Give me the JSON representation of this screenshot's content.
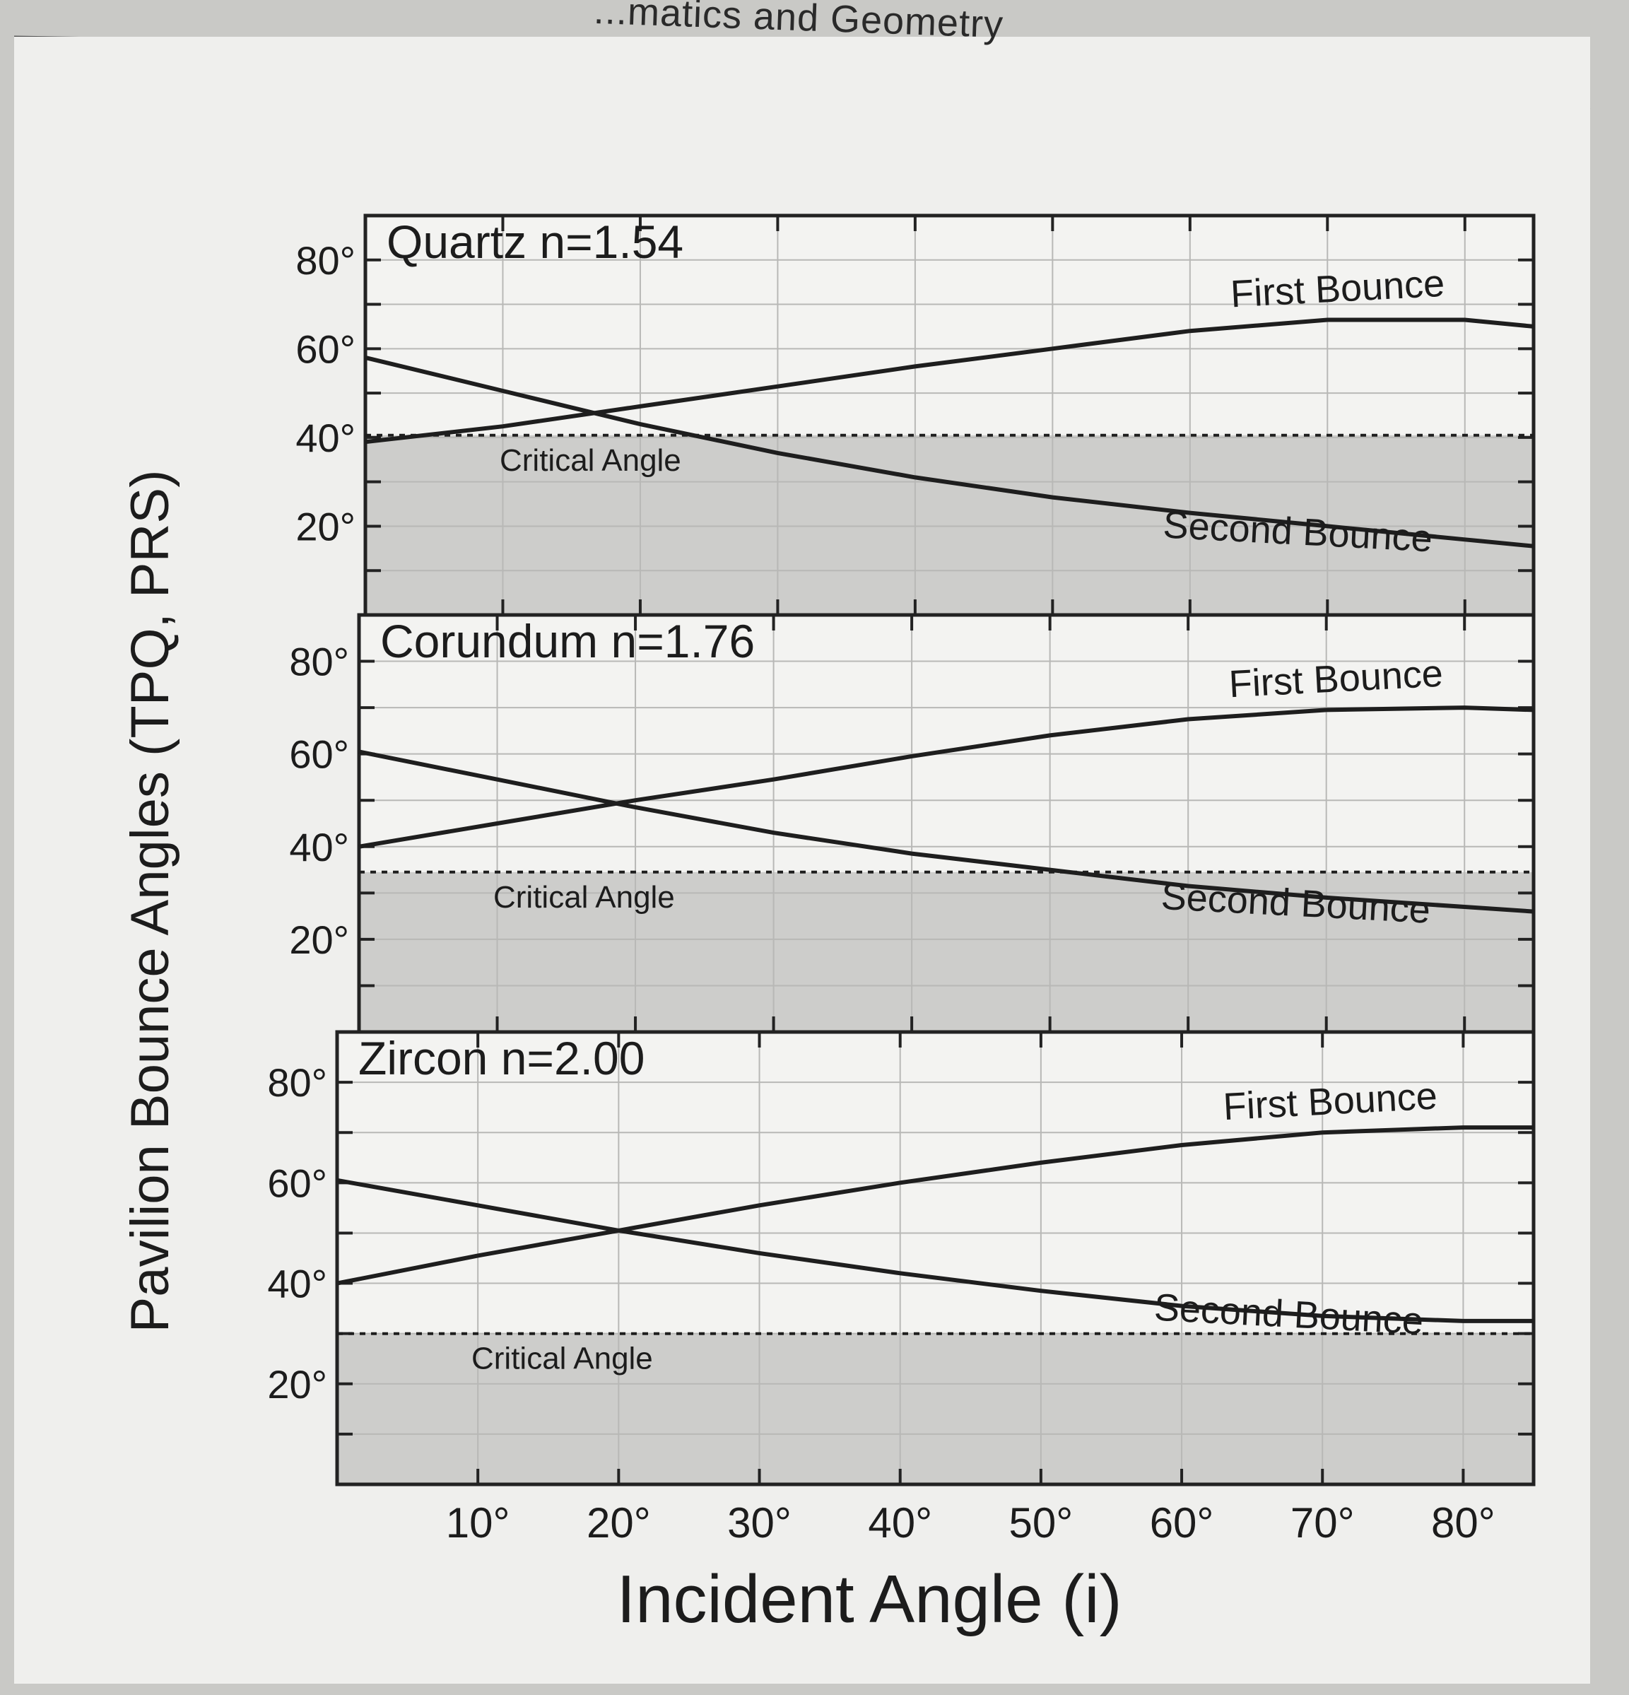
{
  "page": {
    "running_head": "...matics and Geometry",
    "y_axis_title": "Pavilion Bounce Angles (TPQ, PRS)",
    "x_axis_title": "Incident Angle (i)"
  },
  "chart_data": [
    {
      "type": "line",
      "title": "Quartz  n=1.54",
      "xlim": [
        0,
        85
      ],
      "ylim": [
        0,
        90
      ],
      "x_ticks": [
        "10°",
        "20°",
        "30°",
        "40°",
        "50°",
        "60°",
        "70°",
        "80°"
      ],
      "y_ticks": [
        "20°",
        "40°",
        "60°",
        "80°"
      ],
      "x": [
        0,
        10,
        20,
        30,
        40,
        50,
        60,
        70,
        80,
        85
      ],
      "series": [
        {
          "name": "First Bounce",
          "values": [
            39,
            42.5,
            47,
            51.5,
            56,
            60,
            64,
            66.5,
            66.5,
            65
          ],
          "style": "solid"
        },
        {
          "name": "Second Bounce",
          "values": [
            58,
            50.5,
            43,
            36.5,
            31,
            26.5,
            23,
            20,
            17,
            15.5
          ],
          "style": "solid"
        },
        {
          "name": "Critical Angle",
          "values": [
            40.5,
            40.5,
            40.5,
            40.5,
            40.5,
            40.5,
            40.5,
            40.5,
            40.5,
            40.5
          ],
          "style": "dashed"
        }
      ],
      "labels": {
        "first": "First Bounce",
        "second": "Second Bounce",
        "critical": "Critical Angle"
      }
    },
    {
      "type": "line",
      "title": "Corundum  n=1.76",
      "xlim": [
        0,
        85
      ],
      "ylim": [
        0,
        90
      ],
      "x_ticks": [
        "10°",
        "20°",
        "30°",
        "40°",
        "50°",
        "60°",
        "70°",
        "80°"
      ],
      "y_ticks": [
        "20°",
        "40°",
        "60°",
        "80°"
      ],
      "x": [
        0,
        10,
        20,
        30,
        40,
        50,
        60,
        70,
        80,
        85
      ],
      "series": [
        {
          "name": "First Bounce",
          "values": [
            40,
            45,
            50,
            54.5,
            59.5,
            64,
            67.5,
            69.5,
            70,
            69.5
          ],
          "style": "solid"
        },
        {
          "name": "Second Bounce",
          "values": [
            60.5,
            54.5,
            48.5,
            43,
            38.5,
            35,
            31.5,
            29,
            27,
            26
          ],
          "style": "solid"
        },
        {
          "name": "Critical Angle",
          "values": [
            34.5,
            34.5,
            34.5,
            34.5,
            34.5,
            34.5,
            34.5,
            34.5,
            34.5,
            34.5
          ],
          "style": "dashed"
        }
      ],
      "labels": {
        "first": "First Bounce",
        "second": "Second Bounce",
        "critical": "Critical Angle"
      }
    },
    {
      "type": "line",
      "title": "Zircon  n=2.00",
      "xlim": [
        0,
        85
      ],
      "ylim": [
        0,
        90
      ],
      "x_ticks": [
        "10°",
        "20°",
        "30°",
        "40°",
        "50°",
        "60°",
        "70°",
        "80°"
      ],
      "y_ticks": [
        "20°",
        "40°",
        "60°",
        "80°"
      ],
      "x": [
        0,
        10,
        20,
        30,
        40,
        50,
        60,
        70,
        80,
        85
      ],
      "series": [
        {
          "name": "First Bounce",
          "values": [
            40,
            45.5,
            50.5,
            55.5,
            60,
            64,
            67.5,
            70,
            71,
            71
          ],
          "style": "solid"
        },
        {
          "name": "Second Bounce",
          "values": [
            60.5,
            55.5,
            50.5,
            46,
            42,
            38.5,
            35.5,
            33.5,
            32.5,
            32.5
          ],
          "style": "solid"
        },
        {
          "name": "Critical Angle",
          "values": [
            30,
            30,
            30,
            30,
            30,
            30,
            30,
            30,
            30,
            30
          ],
          "style": "dashed"
        }
      ],
      "labels": {
        "first": "First Bounce",
        "second": "Second Bounce",
        "critical": "Critical Angle"
      }
    }
  ]
}
